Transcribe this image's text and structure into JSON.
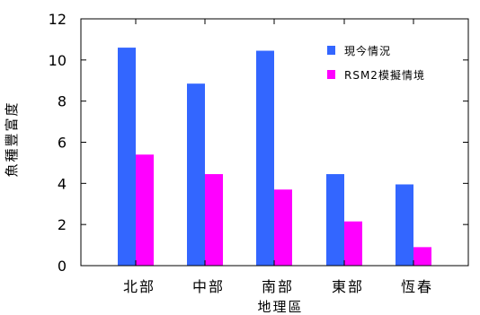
{
  "chart_data": {
    "type": "bar",
    "categories": [
      "北部",
      "中部",
      "南部",
      "東部",
      "恆春"
    ],
    "series": [
      {
        "name": "現今情況",
        "values": [
          10.6,
          8.85,
          10.45,
          4.45,
          3.95
        ],
        "color": "#3366ff"
      },
      {
        "name": "RSM2模擬情境",
        "values": [
          5.4,
          4.45,
          3.7,
          2.15,
          0.9
        ],
        "color": "#ff00ff"
      }
    ],
    "title": "",
    "xlabel": "地理區",
    "ylabel": "魚種豐富度",
    "ylim": [
      0,
      12
    ],
    "yticks": [
      0,
      2,
      4,
      6,
      8,
      10,
      12
    ],
    "yticks_labels": [
      "0",
      "2",
      "4",
      "6",
      "8",
      "10",
      "12"
    ],
    "grid": false,
    "legend_position": "top-right"
  }
}
